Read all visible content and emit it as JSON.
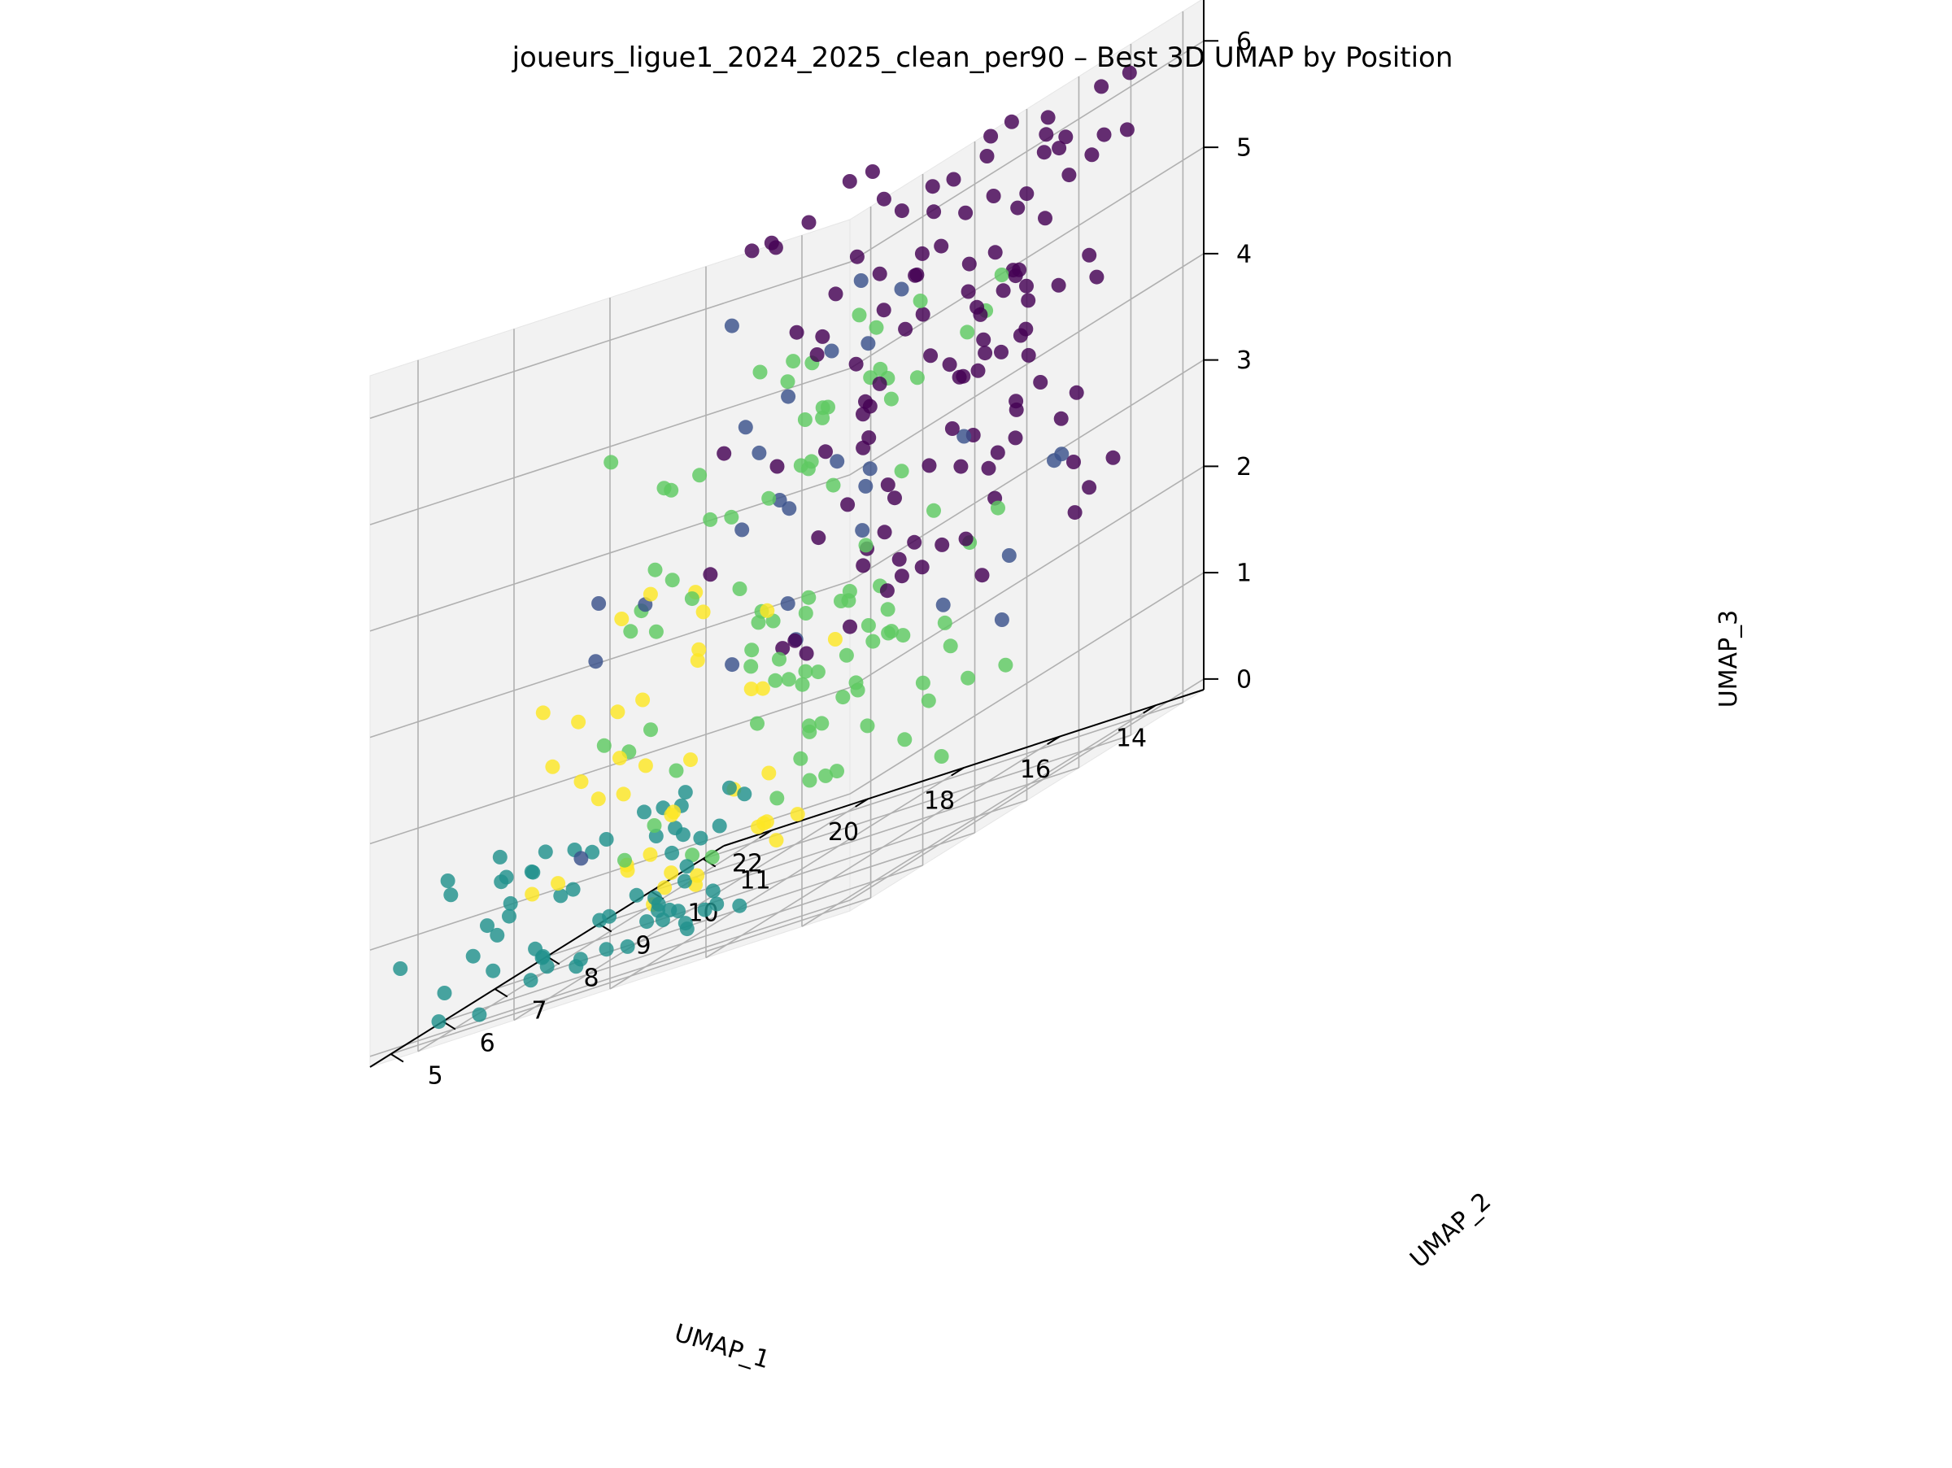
{
  "colors": {
    "background": "#ffffff",
    "pane": "#f2f2f2",
    "grid": "#b0b0b0",
    "axis": "#000000",
    "palette": {
      "purple": "#440154",
      "blue": "#3b528b",
      "teal": "#21918c",
      "green": "#5ec962",
      "yellow": "#fde725"
    }
  },
  "chart_data": {
    "type": "scatter",
    "projection": "3d",
    "title": "joueurs_ligue1_2024_2025_clean_per90 – Best 3D UMAP by Position",
    "xlabel": "UMAP_1",
    "ylabel": "UMAP_2",
    "zlabel": "UMAP_3",
    "xlim": [
      13,
      23
    ],
    "ylim": [
      4.6,
      11.4
    ],
    "zlim": [
      -0.1,
      6.4
    ],
    "xticks": [
      "14",
      "16",
      "18",
      "20",
      "22"
    ],
    "yticks": [
      "5",
      "6",
      "7",
      "8",
      "9",
      "10",
      "11"
    ],
    "zticks": [
      "0",
      "1",
      "2",
      "3",
      "4",
      "5",
      "6"
    ],
    "grid": true,
    "legend": "none",
    "colormap": "viridis",
    "clusters": [
      {
        "color": "#440154",
        "count": 115,
        "seed": 11,
        "x": [
          13.5,
          19.8
        ],
        "y": [
          8.0,
          11.0
        ],
        "z": [
          1.9,
          6.1
        ]
      },
      {
        "color": "#3b528b",
        "count": 28,
        "seed": 23,
        "x": [
          14.5,
          20.5
        ],
        "y": [
          6.0,
          10.5
        ],
        "z": [
          0.9,
          5.3
        ]
      },
      {
        "color": "#21918c",
        "count": 62,
        "seed": 37,
        "x": [
          16.8,
          22.5
        ],
        "y": [
          4.6,
          7.0
        ],
        "z": [
          0.0,
          1.3
        ]
      },
      {
        "color": "#5ec962",
        "count": 95,
        "seed": 41,
        "x": [
          14.5,
          20.5
        ],
        "y": [
          6.0,
          10.0
        ],
        "z": [
          0.5,
          4.8
        ]
      },
      {
        "color": "#fde725",
        "count": 40,
        "seed": 53,
        "x": [
          16.5,
          21.8
        ],
        "y": [
          5.0,
          8.5
        ],
        "z": [
          0.1,
          3.4
        ]
      }
    ]
  }
}
